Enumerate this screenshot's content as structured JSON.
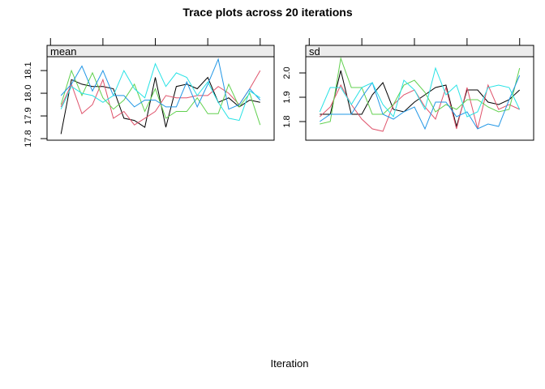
{
  "title": "Trace plots across 20 iterations",
  "xlabel": "Iteration",
  "strip_fill": "#ECECEC",
  "axis_color": "#000000",
  "chart_data": [
    {
      "type": "line",
      "panel": "mean",
      "x": [
        1,
        2,
        3,
        4,
        5,
        6,
        7,
        8,
        9,
        10,
        11,
        12,
        13,
        14,
        15,
        16,
        17,
        18,
        19,
        20
      ],
      "xlim": [
        -0.33,
        21.33
      ],
      "xticks": [
        0,
        5,
        10,
        15,
        20
      ],
      "xtick_labels": [
        "",
        "",
        "",
        "",
        ""
      ],
      "ylim": [
        17.793,
        18.161
      ],
      "yticks": [
        17.8,
        17.9,
        18.0,
        18.1
      ],
      "ytick_labels": [
        "17.8",
        "17.9",
        "18.0",
        "18.1"
      ],
      "grid": false,
      "legend": "none",
      "series": [
        {
          "name": "black",
          "color": "#000000",
          "values": [
            17.82,
            18.06,
            18.04,
            18.03,
            18.03,
            18.02,
            17.89,
            17.88,
            17.85,
            18.07,
            17.85,
            18.03,
            18.04,
            18.02,
            18.07,
            17.96,
            17.98,
            17.94,
            17.97,
            17.96
          ]
        },
        {
          "name": "red",
          "color": "#DF536B",
          "values": [
            17.94,
            18.04,
            17.91,
            17.95,
            18.06,
            17.89,
            17.92,
            17.86,
            17.89,
            17.92,
            17.99,
            17.98,
            17.98,
            17.99,
            17.99,
            18.03,
            18.0,
            17.95,
            18.02,
            18.1
          ]
        },
        {
          "name": "green",
          "color": "#61D04F",
          "values": [
            17.95,
            18.1,
            17.99,
            18.09,
            17.98,
            17.93,
            17.97,
            18.04,
            17.92,
            18.02,
            17.89,
            17.92,
            17.92,
            17.98,
            17.91,
            17.91,
            18.04,
            17.94,
            18.0,
            17.86
          ]
        },
        {
          "name": "blue",
          "color": "#2297E6",
          "values": [
            17.99,
            18.04,
            18.12,
            18.01,
            18.1,
            17.99,
            17.99,
            17.94,
            17.97,
            17.97,
            17.94,
            17.94,
            18.05,
            17.94,
            18.04,
            18.15,
            17.93,
            17.95,
            18.02,
            17.97
          ]
        },
        {
          "name": "cyan",
          "color": "#28E2E5",
          "values": [
            17.93,
            18.03,
            18.0,
            17.99,
            17.96,
            17.99,
            18.1,
            18.02,
            17.98,
            18.13,
            18.03,
            18.09,
            18.07,
            17.99,
            18.05,
            17.96,
            17.89,
            17.88,
            18.01,
            17.98
          ]
        }
      ]
    },
    {
      "type": "line",
      "panel": "sd",
      "x": [
        1,
        2,
        3,
        4,
        5,
        6,
        7,
        8,
        9,
        10,
        11,
        12,
        13,
        14,
        15,
        16,
        17,
        18,
        19,
        20
      ],
      "xlim": [
        -0.33,
        21.33
      ],
      "xticks": [
        0,
        5,
        10,
        15,
        20
      ],
      "xtick_labels": [
        "",
        "",
        "",
        "",
        ""
      ],
      "ylim": [
        1.7233,
        2.0667
      ],
      "yticks": [
        1.8,
        1.9,
        2.0
      ],
      "ytick_labels": [
        "1.8",
        "1.9",
        "2.0"
      ],
      "grid": false,
      "legend": "none",
      "series": [
        {
          "name": "black",
          "color": "#000000",
          "values": [
            1.83,
            1.83,
            2.01,
            1.83,
            1.83,
            1.91,
            1.96,
            1.85,
            1.84,
            1.88,
            1.91,
            1.94,
            1.95,
            1.78,
            1.93,
            1.93,
            1.88,
            1.87,
            1.89,
            1.93
          ]
        },
        {
          "name": "red",
          "color": "#DF536B",
          "values": [
            1.82,
            1.86,
            1.95,
            1.87,
            1.81,
            1.77,
            1.76,
            1.87,
            1.91,
            1.93,
            1.86,
            1.81,
            1.94,
            1.77,
            1.94,
            1.77,
            1.95,
            1.85,
            1.87,
            1.85
          ]
        },
        {
          "name": "green",
          "color": "#61D04F",
          "values": [
            1.79,
            1.8,
            2.06,
            1.94,
            1.94,
            1.83,
            1.83,
            1.87,
            1.95,
            1.97,
            1.92,
            1.84,
            1.87,
            1.85,
            1.89,
            1.89,
            1.86,
            1.84,
            1.85,
            2.02
          ]
        },
        {
          "name": "blue",
          "color": "#2297E6",
          "values": [
            1.8,
            1.83,
            1.83,
            1.83,
            1.9,
            1.96,
            1.83,
            1.81,
            1.84,
            1.86,
            1.77,
            1.88,
            1.88,
            1.82,
            1.84,
            1.77,
            1.79,
            1.78,
            1.89,
            1.99
          ]
        },
        {
          "name": "cyan",
          "color": "#28E2E5",
          "values": [
            1.84,
            1.94,
            1.94,
            1.87,
            1.94,
            1.96,
            1.87,
            1.82,
            1.97,
            1.93,
            1.85,
            2.02,
            1.91,
            1.95,
            1.82,
            1.84,
            1.94,
            1.95,
            1.94,
            1.85
          ]
        }
      ]
    }
  ]
}
